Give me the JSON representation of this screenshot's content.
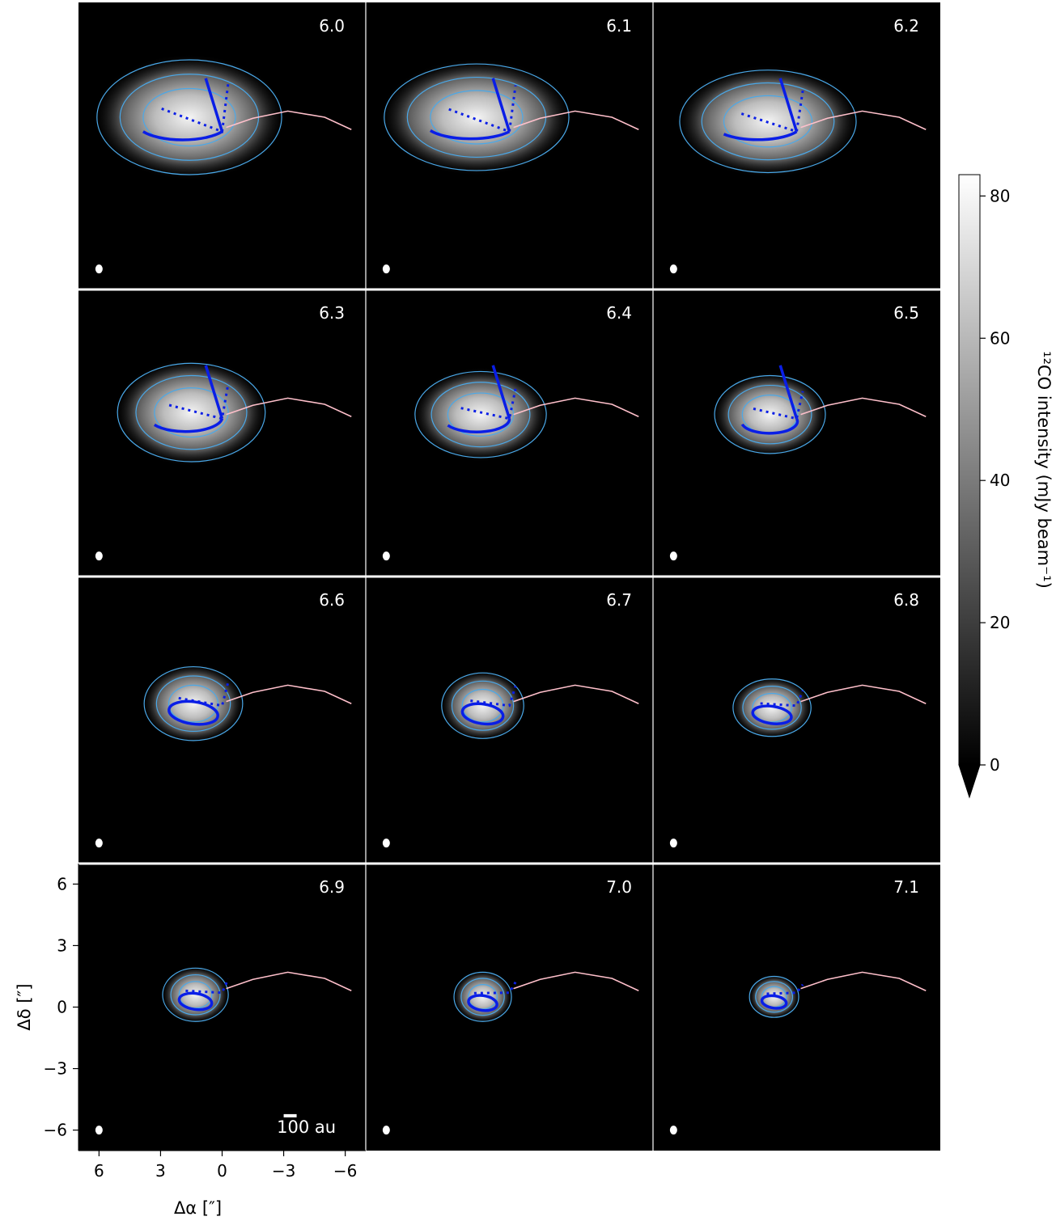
{
  "chart_data": {
    "type": "heatmap",
    "panel_velocities": [
      "6.0",
      "6.1",
      "6.2",
      "6.3",
      "6.4",
      "6.5",
      "6.6",
      "6.7",
      "6.8",
      "6.9",
      "7.0",
      "7.1"
    ],
    "grid": {
      "rows": 4,
      "cols": 3
    },
    "xlabel": "Δα [″]",
    "ylabel": "Δδ [″]",
    "xlim": [
      7,
      -7
    ],
    "ylim": [
      -7,
      7
    ],
    "xticks": [
      6,
      3,
      0,
      -3,
      -6
    ],
    "xtick_labels": [
      "6",
      "3",
      "0",
      "−3",
      "−6"
    ],
    "yticks": [
      6,
      3,
      0,
      -3,
      -6
    ],
    "ytick_labels": [
      "6",
      "3",
      "0",
      "−3",
      "−6"
    ],
    "scale_bar_label": "100 au",
    "colorbar": {
      "label": "¹²CO intensity (mJy beam⁻¹)",
      "min": 0,
      "max": 83,
      "ticks": [
        0,
        20,
        40,
        60,
        80
      ],
      "tick_labels": [
        "0",
        "20",
        "40",
        "60",
        "80"
      ],
      "extend": "min"
    },
    "colors": {
      "background": "#000000",
      "contour": "#4aa8e8",
      "model_solid": "#0a1ee6",
      "streamer_curve": "#ffc0cb"
    },
    "streamer_curve_arcsec": [
      [
        -0.2,
        0.9
      ],
      [
        -1.5,
        1.35
      ],
      [
        -3.2,
        1.7
      ],
      [
        -5.0,
        1.4
      ],
      [
        -6.3,
        0.8
      ]
    ],
    "emission_center_arcsec": [
      [
        1.6,
        1.4
      ],
      [
        1.6,
        1.4
      ],
      [
        1.4,
        1.2
      ],
      [
        1.5,
        1.0
      ],
      [
        1.4,
        0.9
      ],
      [
        1.3,
        0.9
      ],
      [
        1.4,
        0.8
      ],
      [
        1.3,
        0.7
      ],
      [
        1.2,
        0.6
      ],
      [
        1.3,
        0.6
      ],
      [
        1.3,
        0.5
      ],
      [
        1.1,
        0.5
      ]
    ],
    "emission_radius_arcsec": [
      [
        4.5,
        2.8
      ],
      [
        4.5,
        2.6
      ],
      [
        4.3,
        2.5
      ],
      [
        3.6,
        2.4
      ],
      [
        3.2,
        2.1
      ],
      [
        2.7,
        1.9
      ],
      [
        2.4,
        1.8
      ],
      [
        2.0,
        1.6
      ],
      [
        1.9,
        1.4
      ],
      [
        1.6,
        1.3
      ],
      [
        1.4,
        1.2
      ],
      [
        1.2,
        1.0
      ]
    ]
  }
}
